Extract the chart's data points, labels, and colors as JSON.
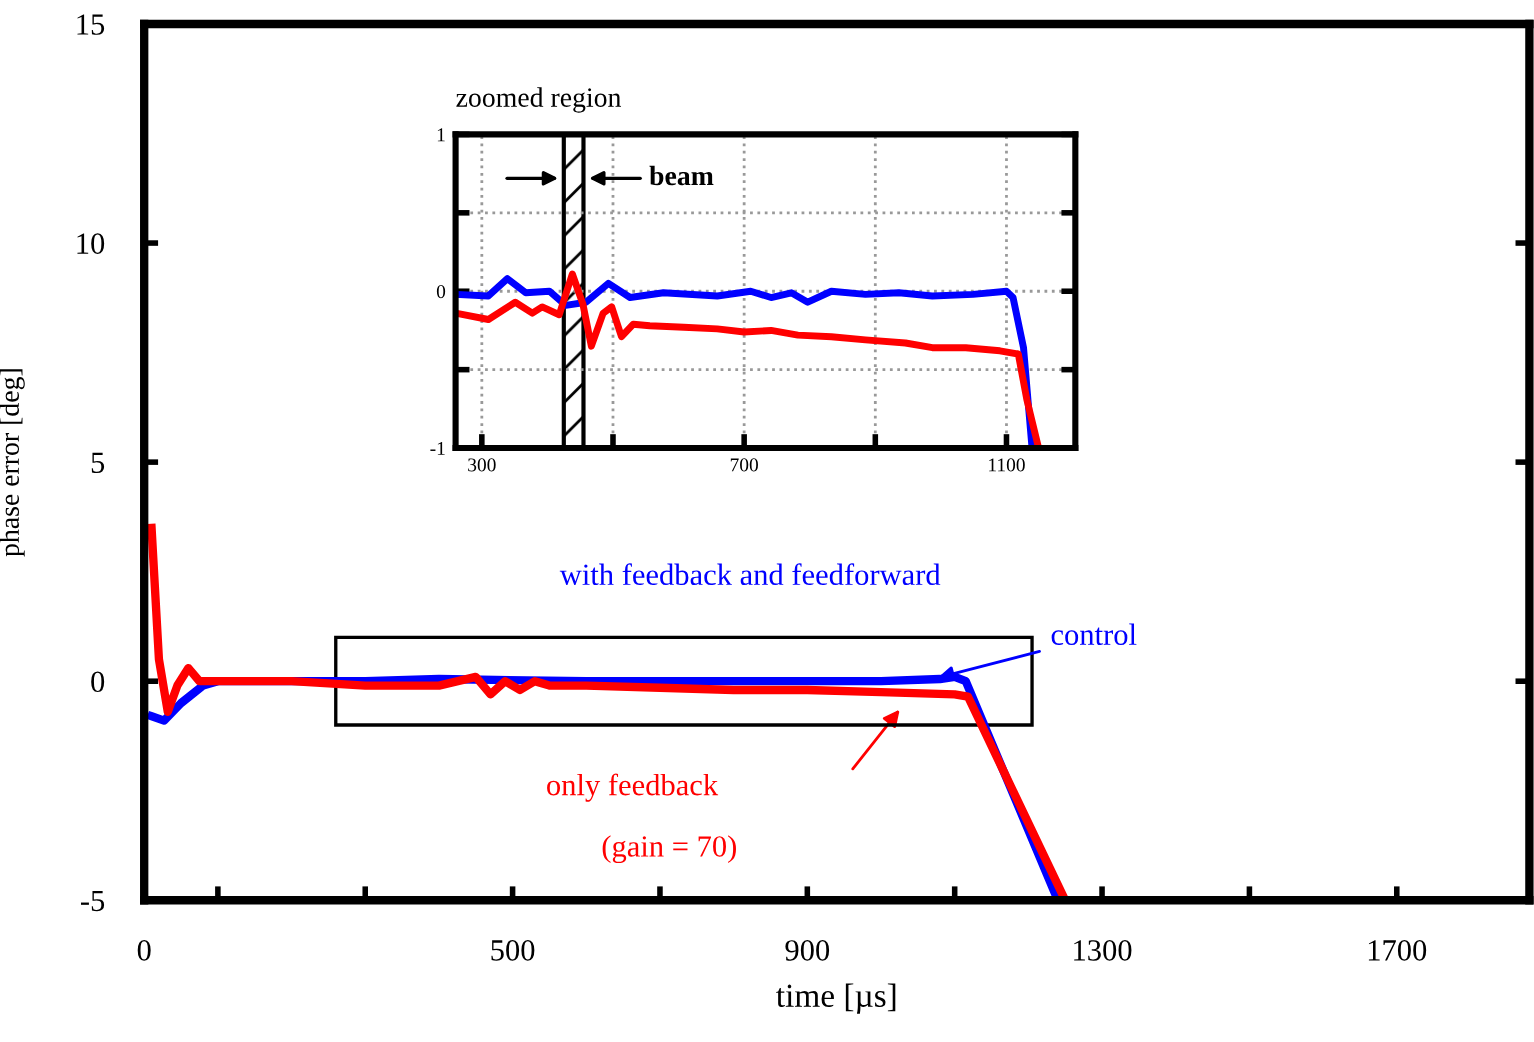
{
  "chart_data": [
    {
      "type": "line",
      "xlabel": "time [µs]",
      "ylabel": "phase error [deg]",
      "xlim": [
        0,
        1880
      ],
      "ylim": [
        -5,
        15
      ],
      "xticks": [
        0,
        {
          "value": 100,
          "label": null
        },
        {
          "value": 300,
          "label": null
        },
        500,
        {
          "value": 700,
          "label": null
        },
        900,
        {
          "value": 1100,
          "label": null
        },
        1300,
        {
          "value": 1500,
          "label": null
        },
        1700
      ],
      "yticks": [
        -5,
        0,
        5,
        10,
        15
      ],
      "grid": false,
      "legend": false,
      "series": [
        {
          "name": "with feedback and feedforward",
          "color": "#0000ff",
          "x": [
            10,
            27,
            50,
            80,
            100,
            300,
            400,
            600,
            800,
            1000,
            1080,
            1100,
            1115,
            1240
          ],
          "values": [
            -0.8,
            -0.9,
            -0.5,
            -0.1,
            0,
            0,
            0.05,
            0,
            0,
            0,
            0.05,
            0.1,
            0,
            -5
          ]
        },
        {
          "name": "only feedback",
          "color": "#ff0000",
          "x": [
            10,
            20,
            32,
            45,
            60,
            75,
            100,
            200,
            300,
            400,
            450,
            470,
            490,
            510,
            530,
            550,
            600,
            700,
            800,
            900,
            1000,
            1100,
            1118,
            1250
          ],
          "values": [
            3.5,
            0.5,
            -0.7,
            -0.1,
            0.3,
            0,
            0,
            0,
            -0.1,
            -0.1,
            0.1,
            -0.3,
            0,
            -0.2,
            0,
            -0.1,
            -0.1,
            -0.15,
            -0.2,
            -0.2,
            -0.25,
            -0.3,
            -0.35,
            -5
          ]
        }
      ],
      "annotations": [
        {
          "text": "control",
          "x": 1070,
          "y": 0.05
        },
        "(gain = 70)"
      ]
    },
    {
      "type": "line",
      "title": "zoomed region",
      "xlim": [
        260,
        1205
      ],
      "ylim": [
        -1,
        1
      ],
      "xticks": [
        300,
        {
          "value": 500,
          "label": null
        },
        700,
        {
          "value": 900,
          "label": null
        },
        1100
      ],
      "yticks": [
        -1,
        {
          "value": -0.5,
          "label": null
        },
        0,
        {
          "value": 0.5,
          "label": null
        },
        1
      ],
      "grid": true,
      "bands": [
        {
          "axis": "x",
          "from": 425,
          "to": 455,
          "label": "beam"
        }
      ],
      "series": [
        {
          "color": "#0000ff",
          "x": [
            262,
            310,
            339,
            367,
            403,
            428,
            459,
            493,
            526,
            577,
            659,
            710,
            741,
            772,
            797,
            833,
            885,
            936,
            987,
            1049,
            1100,
            1110,
            1126,
            1139
          ],
          "values": [
            -0.02,
            -0.03,
            0.08,
            -0.01,
            0,
            -0.09,
            -0.07,
            0.05,
            -0.04,
            -0.01,
            -0.03,
            0,
            -0.04,
            -0.01,
            -0.07,
            0,
            -0.02,
            -0.01,
            -0.03,
            -0.02,
            0,
            -0.04,
            -0.36,
            -1
          ]
        },
        {
          "color": "#ff0000",
          "x": [
            260,
            310,
            351,
            377,
            392,
            418,
            438,
            454,
            467,
            485,
            498,
            513,
            531,
            556,
            608,
            659,
            700,
            741,
            782,
            833,
            885,
            946,
            987,
            1038,
            1090,
            1118,
            1131,
            1149
          ],
          "values": [
            -0.14,
            -0.18,
            -0.07,
            -0.14,
            -0.1,
            -0.15,
            0.11,
            -0.08,
            -0.35,
            -0.14,
            -0.1,
            -0.29,
            -0.21,
            -0.22,
            -0.23,
            -0.24,
            -0.26,
            -0.25,
            -0.28,
            -0.29,
            -0.31,
            -0.33,
            -0.36,
            -0.36,
            -0.38,
            -0.4,
            -0.69,
            -1
          ]
        }
      ]
    }
  ]
}
